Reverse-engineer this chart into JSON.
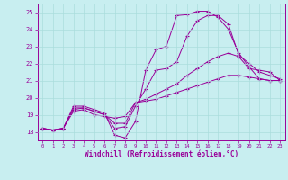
{
  "xlabel": "Windchill (Refroidissement éolien,°C)",
  "background_color": "#c8eef0",
  "line_color": "#990099",
  "grid_color": "#aadddd",
  "xlim": [
    -0.5,
    23.5
  ],
  "ylim": [
    17.5,
    25.5
  ],
  "yticks": [
    18,
    19,
    20,
    21,
    22,
    23,
    24,
    25
  ],
  "xticks": [
    0,
    1,
    2,
    3,
    4,
    5,
    6,
    7,
    8,
    9,
    10,
    11,
    12,
    13,
    14,
    15,
    16,
    17,
    18,
    19,
    20,
    21,
    22,
    23
  ],
  "curves": [
    {
      "x": [
        0,
        1,
        2,
        3,
        4,
        5,
        6,
        7,
        8,
        9,
        10,
        11,
        12,
        13,
        14,
        15,
        16,
        17,
        18,
        19,
        20,
        21,
        22,
        23
      ],
      "y": [
        18.2,
        18.1,
        18.2,
        19.5,
        19.5,
        19.3,
        19.1,
        17.8,
        17.65,
        18.6,
        21.6,
        22.8,
        23.0,
        24.8,
        24.85,
        25.05,
        25.05,
        24.7,
        24.0,
        22.6,
        21.8,
        21.1,
        21.0,
        21.0
      ]
    },
    {
      "x": [
        0,
        1,
        2,
        3,
        4,
        5,
        6,
        7,
        8,
        9,
        10,
        11,
        12,
        13,
        14,
        15,
        16,
        17,
        18,
        19,
        20,
        21,
        22,
        23
      ],
      "y": [
        18.2,
        18.1,
        18.2,
        19.4,
        19.4,
        19.2,
        19.0,
        18.2,
        18.3,
        19.5,
        20.5,
        21.6,
        21.7,
        22.1,
        23.6,
        24.5,
        24.8,
        24.8,
        24.3,
        22.5,
        22.0,
        21.5,
        21.3,
        21.1
      ]
    },
    {
      "x": [
        0,
        1,
        2,
        3,
        4,
        5,
        6,
        7,
        8,
        9,
        10,
        11,
        12,
        13,
        14,
        15,
        16,
        17,
        18,
        19,
        20,
        21,
        22,
        23
      ],
      "y": [
        18.2,
        18.1,
        18.2,
        19.3,
        19.4,
        19.2,
        19.0,
        18.5,
        18.5,
        19.7,
        19.9,
        20.2,
        20.5,
        20.8,
        21.3,
        21.7,
        22.1,
        22.4,
        22.6,
        22.4,
        21.7,
        21.6,
        21.5,
        21.0
      ]
    },
    {
      "x": [
        0,
        1,
        2,
        3,
        4,
        5,
        6,
        7,
        8,
        9,
        10,
        11,
        12,
        13,
        14,
        15,
        16,
        17,
        18,
        19,
        20,
        21,
        22,
        23
      ],
      "y": [
        18.2,
        18.1,
        18.2,
        19.2,
        19.3,
        19.0,
        18.9,
        18.8,
        18.9,
        19.7,
        19.8,
        19.9,
        20.1,
        20.3,
        20.5,
        20.7,
        20.9,
        21.1,
        21.3,
        21.3,
        21.2,
        21.1,
        21.0,
        21.0
      ]
    }
  ]
}
